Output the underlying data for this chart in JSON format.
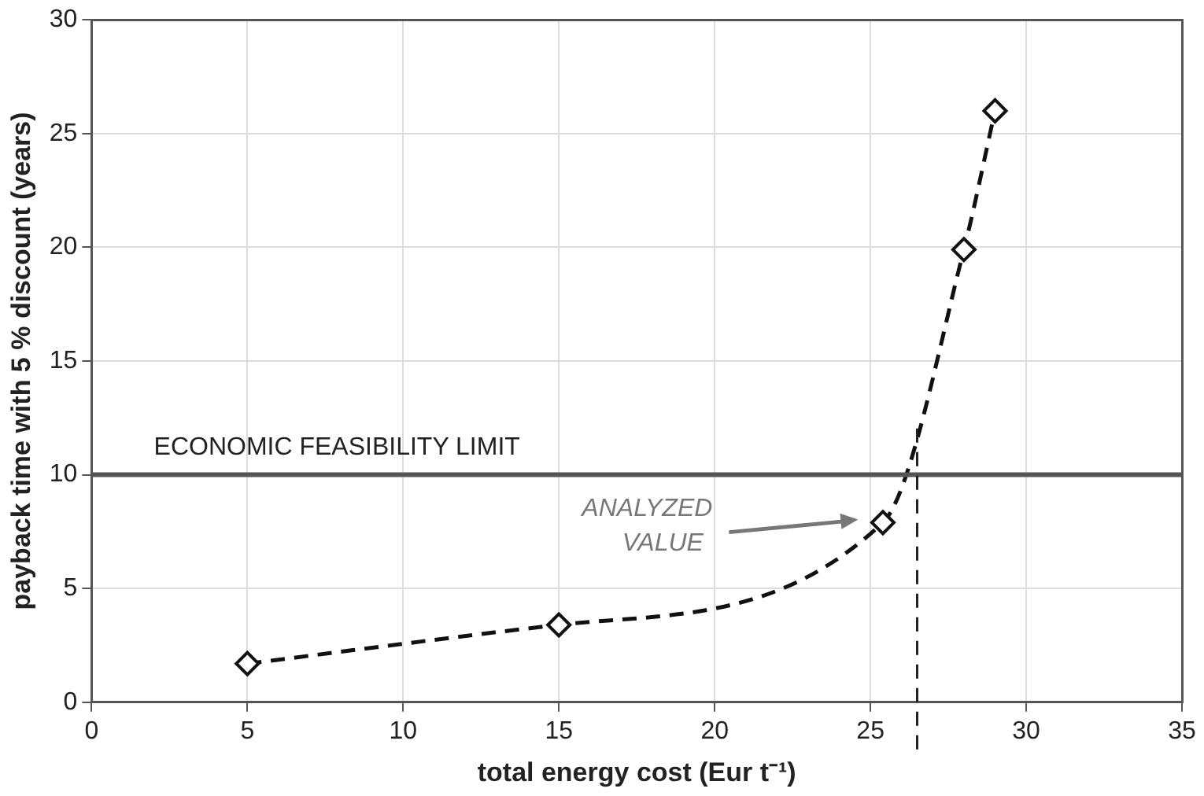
{
  "chart_data": {
    "type": "line",
    "xlabel": "total energy cost (Eur t⁻¹)",
    "ylabel": "payback time with 5 % discount (years)",
    "x": [
      5,
      15,
      25.4,
      28,
      29
    ],
    "series": [
      {
        "color": "#111111",
        "values": [
          1.7,
          3.4,
          7.9,
          19.9,
          26
        ]
      }
    ],
    "marker": "diamond",
    "line_style": "dashed",
    "xlim": [
      0,
      35
    ],
    "xticks": [
      0,
      5,
      10,
      15,
      20,
      25,
      30,
      35
    ],
    "ylim": [
      0,
      30
    ],
    "yticks": [
      0,
      5,
      10,
      15,
      20,
      25,
      30
    ],
    "grid": true,
    "ref_lines": [
      {
        "axis": "y",
        "value": 10,
        "label": "ECONOMIC FEASIBILITY LIMIT",
        "color": "#555555",
        "line_style": "solid"
      },
      {
        "axis": "x",
        "value": 26.5,
        "label": null,
        "color": "#222222",
        "line_style": "dashed"
      }
    ],
    "annotations": [
      "ANALYZED VALUE"
    ]
  }
}
